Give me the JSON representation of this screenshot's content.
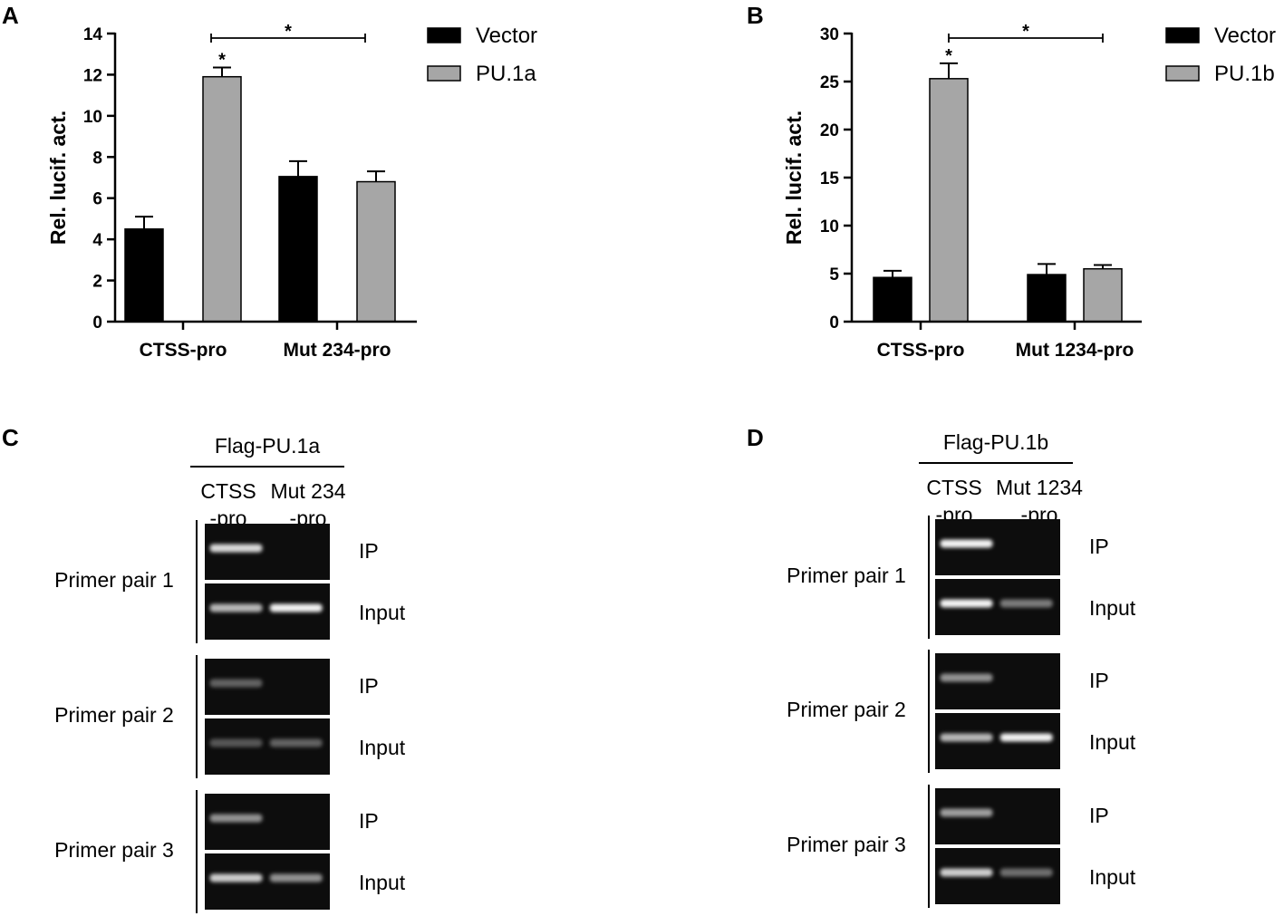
{
  "panels": {
    "a_label": "A",
    "b_label": "B",
    "c_label": "C",
    "d_label": "D"
  },
  "chart_data": [
    {
      "panel": "A",
      "type": "bar",
      "categories": [
        "CTSS-pro",
        "Mut 234-pro"
      ],
      "series": [
        {
          "name": "Vector",
          "color": "#000000",
          "values": [
            4.5,
            7.05
          ],
          "errors": [
            0.6,
            0.75
          ]
        },
        {
          "name": "PU.1a",
          "color": "#a6a6a6",
          "values": [
            11.9,
            6.8
          ],
          "errors": [
            0.45,
            0.5
          ]
        }
      ],
      "ylabel": "Rel. lucif. act.",
      "ylim": [
        0,
        14
      ],
      "yticks": [
        "0",
        "2",
        "4",
        "6",
        "8",
        "10",
        "12",
        "14"
      ],
      "star_bar": "*",
      "star_bracket": "*",
      "legend_position": "top-right"
    },
    {
      "panel": "B",
      "type": "bar",
      "categories": [
        "CTSS-pro",
        "Mut 1234-pro"
      ],
      "series": [
        {
          "name": "Vector",
          "color": "#000000",
          "values": [
            4.6,
            4.9
          ],
          "errors": [
            0.7,
            1.1
          ]
        },
        {
          "name": "PU.1b",
          "color": "#a6a6a6",
          "values": [
            25.3,
            5.5
          ],
          "errors": [
            1.6,
            0.4
          ]
        }
      ],
      "ylabel": "Rel. lucif. act.",
      "ylim": [
        0,
        30
      ],
      "yticks": [
        "0",
        "5",
        "10",
        "15",
        "20",
        "25",
        "30"
      ],
      "star_bar": "*",
      "star_bracket": "*",
      "legend_position": "top-right"
    }
  ],
  "gels": [
    {
      "panel": "C",
      "construct": "Flag-PU.1a",
      "lane1_line1": "CTSS",
      "lane1_line2": "-pro",
      "lane2_line1": "Mut 234",
      "lane2_line2": "-pro",
      "groups": [
        {
          "name": "Primer pair 1",
          "ip": "IP",
          "input": "Input",
          "bands": {
            "ip": [
              0.85,
              0.0
            ],
            "input": [
              0.7,
              0.95
            ]
          }
        },
        {
          "name": "Primer pair 2",
          "ip": "IP",
          "input": "Input",
          "bands": {
            "ip": [
              0.35,
              0.0
            ],
            "input": [
              0.3,
              0.35
            ]
          }
        },
        {
          "name": "Primer pair 3",
          "ip": "IP",
          "input": "Input",
          "bands": {
            "ip": [
              0.55,
              0.0
            ],
            "input": [
              0.8,
              0.55
            ]
          }
        }
      ]
    },
    {
      "panel": "D",
      "construct": "Flag-PU.1b",
      "lane1_line1": "CTSS",
      "lane1_line2": "-pro",
      "lane2_line1": "Mut 1234",
      "lane2_line2": "-pro",
      "groups": [
        {
          "name": "Primer pair 1",
          "ip": "IP",
          "input": "Input",
          "bands": {
            "ip": [
              0.95,
              0.0
            ],
            "input": [
              0.95,
              0.45
            ]
          }
        },
        {
          "name": "Primer pair 2",
          "ip": "IP",
          "input": "Input",
          "bands": {
            "ip": [
              0.55,
              0.0
            ],
            "input": [
              0.7,
              0.95
            ]
          }
        },
        {
          "name": "Primer pair 3",
          "ip": "IP",
          "input": "Input",
          "bands": {
            "ip": [
              0.6,
              0.0
            ],
            "input": [
              0.8,
              0.4
            ]
          }
        }
      ]
    }
  ]
}
